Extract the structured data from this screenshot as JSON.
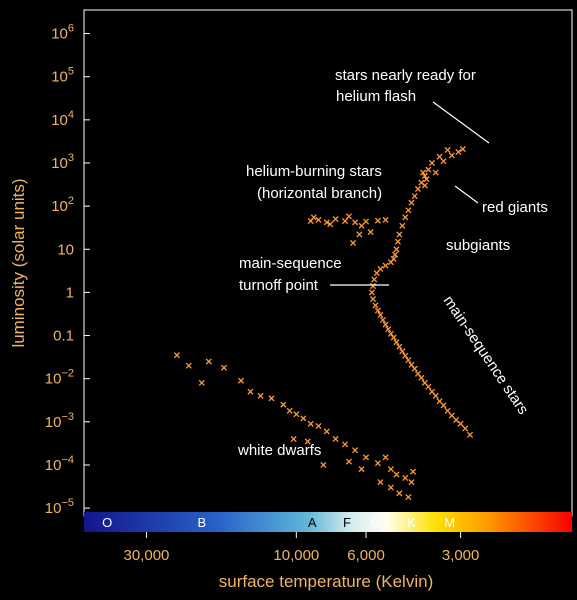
{
  "chart_data": {
    "type": "scatter",
    "title": "",
    "xlabel": "surface temperature (Kelvin)",
    "ylabel": "luminosity (solar units)",
    "x_scale": "log",
    "x_reversed": true,
    "y_scale": "log",
    "xlim": [
      60000,
      2400
    ],
    "ylim": [
      7e-06,
      2000000
    ],
    "x_ticks": [
      {
        "value": 30000,
        "label": "30,000"
      },
      {
        "value": 10000,
        "label": "10,000"
      },
      {
        "value": 6000,
        "label": "6,000"
      },
      {
        "value": 3000,
        "label": "3,000"
      }
    ],
    "y_ticks": [
      {
        "value": 1000000,
        "base": "10",
        "exp": "6"
      },
      {
        "value": 100000,
        "base": "10",
        "exp": "5"
      },
      {
        "value": 10000,
        "base": "10",
        "exp": "4"
      },
      {
        "value": 1000,
        "base": "10",
        "exp": "3"
      },
      {
        "value": 100,
        "base": "10",
        "exp": "2"
      },
      {
        "value": 10,
        "base": "10",
        "exp": ""
      },
      {
        "value": 1,
        "base": "1",
        "exp": ""
      },
      {
        "value": 0.1,
        "base": "0.1",
        "exp": ""
      },
      {
        "value": 0.01,
        "base": "10",
        "exp": "−2"
      },
      {
        "value": 0.001,
        "base": "10",
        "exp": "−3"
      },
      {
        "value": 0.0001,
        "base": "10",
        "exp": "−4"
      },
      {
        "value": 1e-05,
        "base": "10",
        "exp": "−5"
      }
    ],
    "spectral_classes": [
      {
        "label": "O",
        "temperature": 40000
      },
      {
        "label": "B",
        "temperature": 20000
      },
      {
        "label": "A",
        "temperature": 8900
      },
      {
        "label": "F",
        "temperature": 6900
      },
      {
        "label": "G",
        "temperature": 5600
      },
      {
        "label": "K",
        "temperature": 4300
      },
      {
        "label": "M",
        "temperature": 3250
      }
    ],
    "annotations": {
      "flash_line1": "stars nearly ready for",
      "flash_line2": "helium flash",
      "hb_line1": "helium-burning stars",
      "hb_line2": "(horizontal branch)",
      "red_giants": "red giants",
      "subgiants": "subgiants",
      "turnoff_line1": "main-sequence",
      "turnoff_line2": "turnoff point",
      "main_sequence": "main-sequence stars",
      "white_dwarfs": "white dwarfs"
    },
    "marker": "x",
    "colors": {
      "points": "#FF9933",
      "labels": "#F2B45C",
      "annotations": "#FFFFFF",
      "axes": "#FFFFFF",
      "background": "#000000"
    },
    "series": [
      {
        "points": [
          [
            2800,
            0.0005
          ],
          [
            2900,
            0.0007
          ],
          [
            3000,
            0.0009
          ],
          [
            3100,
            0.0011
          ],
          [
            3200,
            0.0014
          ],
          [
            3300,
            0.0018
          ],
          [
            3400,
            0.0024
          ],
          [
            3500,
            0.003
          ],
          [
            3600,
            0.004
          ],
          [
            3700,
            0.005
          ],
          [
            3800,
            0.0065
          ],
          [
            3900,
            0.008
          ],
          [
            4000,
            0.0105
          ],
          [
            4100,
            0.013
          ],
          [
            4200,
            0.017
          ],
          [
            4300,
            0.021
          ],
          [
            4400,
            0.027
          ],
          [
            4500,
            0.034
          ],
          [
            4600,
            0.043
          ],
          [
            4700,
            0.055
          ],
          [
            4800,
            0.07
          ],
          [
            4900,
            0.09
          ],
          [
            5000,
            0.11
          ],
          [
            5100,
            0.14
          ],
          [
            5200,
            0.18
          ],
          [
            5300,
            0.23
          ],
          [
            5400,
            0.3
          ],
          [
            5500,
            0.38
          ],
          [
            5600,
            0.5
          ],
          [
            5700,
            0.7
          ],
          [
            5750,
            1.0
          ],
          [
            5700,
            1.4
          ],
          [
            5650,
            2.0
          ],
          [
            5550,
            2.8
          ],
          [
            5400,
            3.5
          ],
          [
            5200,
            4.2
          ],
          [
            5000,
            5.0
          ],
          [
            4900,
            6.0
          ],
          [
            4850,
            7.5
          ],
          [
            4800,
            10
          ],
          [
            4750,
            15
          ],
          [
            4700,
            22
          ],
          [
            4600,
            35
          ],
          [
            4500,
            55
          ],
          [
            4400,
            80
          ],
          [
            4300,
            120
          ],
          [
            4200,
            170
          ],
          [
            4100,
            250
          ],
          [
            4000,
            350
          ],
          [
            3900,
            500
          ],
          [
            3800,
            700
          ],
          [
            3700,
            1000
          ],
          [
            3500,
            1400
          ],
          [
            3300,
            2000
          ],
          [
            3900,
            300
          ],
          [
            3850,
            420
          ],
          [
            3950,
            600
          ],
          [
            3600,
            600
          ],
          [
            3400,
            1100
          ],
          [
            3200,
            1500
          ],
          [
            3050,
            1800
          ],
          [
            2950,
            2100
          ],
          [
            9000,
            45
          ],
          [
            8500,
            48
          ],
          [
            8000,
            42
          ],
          [
            7500,
            50
          ],
          [
            7000,
            45
          ],
          [
            6500,
            42
          ],
          [
            6000,
            44
          ],
          [
            5500,
            46
          ],
          [
            5200,
            48
          ],
          [
            8800,
            55
          ],
          [
            7800,
            38
          ],
          [
            6800,
            58
          ],
          [
            6200,
            35
          ],
          [
            6600,
            14
          ],
          [
            6300,
            22
          ],
          [
            5800,
            25
          ],
          [
            24000,
            0.035
          ],
          [
            22000,
            0.02
          ],
          [
            20000,
            0.008
          ],
          [
            19000,
            0.025
          ],
          [
            17000,
            0.018
          ],
          [
            15000,
            0.009
          ],
          [
            14000,
            0.005
          ],
          [
            13000,
            0.004
          ],
          [
            12000,
            0.0035
          ],
          [
            11000,
            0.0025
          ],
          [
            10500,
            0.0018
          ],
          [
            10000,
            0.0015
          ],
          [
            9500,
            0.0012
          ],
          [
            9000,
            0.0009
          ],
          [
            8500,
            0.0008
          ],
          [
            8000,
            0.0006
          ],
          [
            7500,
            0.0004
          ],
          [
            7000,
            0.0003
          ],
          [
            6500,
            0.00022
          ],
          [
            6000,
            0.00015
          ],
          [
            5500,
            0.00011
          ],
          [
            5000,
            8e-05
          ],
          [
            4800,
            6e-05
          ],
          [
            4500,
            5e-05
          ],
          [
            10200,
            0.0004
          ],
          [
            9200,
            0.00035
          ],
          [
            8200,
            0.0001
          ],
          [
            6800,
            0.00012
          ],
          [
            6200,
            8e-05
          ],
          [
            5400,
            4e-05
          ],
          [
            5000,
            3e-05
          ],
          [
            4700,
            2.2e-05
          ],
          [
            4400,
            1.8e-05
          ],
          [
            4300,
            4e-05
          ],
          [
            4250,
            7e-05
          ],
          [
            5200,
            0.00015
          ]
        ]
      }
    ]
  }
}
